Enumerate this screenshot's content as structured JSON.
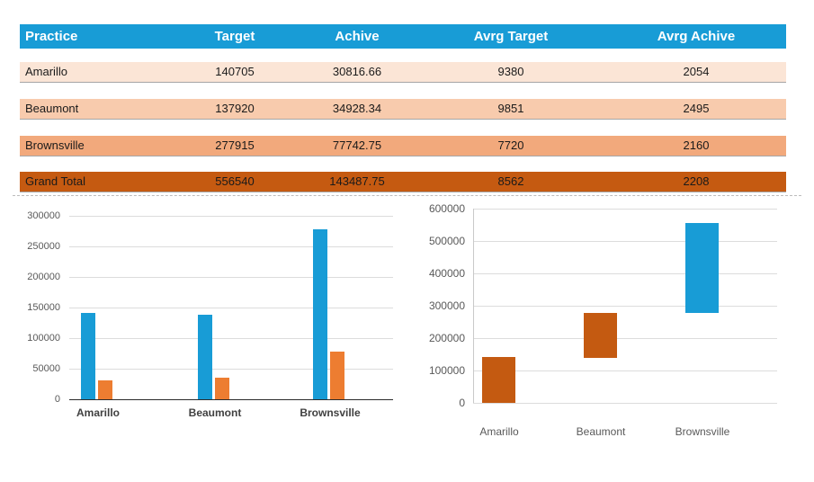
{
  "colors": {
    "header_bg": "#189CD6",
    "row_shades": [
      "#FBE5D6",
      "#F8CBAD",
      "#F2A97C",
      "#C55A11"
    ],
    "chart_blue": "#189CD6",
    "chart_orange": "#ED7D31",
    "chart_dark_orange": "#C45A11",
    "gridline": "#DCDCDC",
    "axis_line": "#2b2b2b",
    "tick_text": "#595959",
    "category_text_left": "#404040",
    "category_text_right": "#595959"
  },
  "table": {
    "columns": [
      "Practice",
      "Target",
      "Achive",
      "Avrg Target",
      "Avrg Achive"
    ],
    "rows": [
      {
        "practice": "Amarillo",
        "target": "140705",
        "achive": "30816.66",
        "avrg_target": "9380",
        "avrg_achive": "2054"
      },
      {
        "practice": "Beaumont",
        "target": "137920",
        "achive": "34928.34",
        "avrg_target": "9851",
        "avrg_achive": "2495"
      },
      {
        "practice": "Brownsville",
        "target": "277915",
        "achive": "77742.75",
        "avrg_target": "7720",
        "avrg_achive": "2160"
      },
      {
        "practice": "Grand Total",
        "target": "556540",
        "achive": "143487.75",
        "avrg_target": "8562",
        "avrg_achive": "2208"
      }
    ]
  },
  "chart_data": [
    {
      "type": "bar",
      "title": "",
      "categories": [
        "Amarillo",
        "Beaumont",
        "Brownsville"
      ],
      "series": [
        {
          "name": "Target",
          "color": "#189CD6",
          "values": [
            140705,
            137920,
            277915
          ]
        },
        {
          "name": "Achive",
          "color": "#ED7D31",
          "values": [
            30816.66,
            34928.34,
            77742.75
          ]
        }
      ],
      "ylim": [
        0,
        300000
      ],
      "ytick_step": 50000,
      "grid": true,
      "legend": "none"
    },
    {
      "type": "waterfall",
      "title": "",
      "categories": [
        "Amarillo",
        "Beaumont",
        "Brownsville"
      ],
      "bars": [
        {
          "category": "Amarillo",
          "base": 0,
          "value": 140705,
          "color": "#C45A11"
        },
        {
          "category": "Beaumont",
          "base": 140705,
          "value": 137920,
          "color": "#C45A11"
        },
        {
          "category": "Brownsville",
          "base": 278625,
          "value": 277915,
          "color": "#189CD6"
        }
      ],
      "ylim": [
        0,
        600000
      ],
      "ytick_step": 100000,
      "grid": true,
      "legend": "none"
    }
  ]
}
